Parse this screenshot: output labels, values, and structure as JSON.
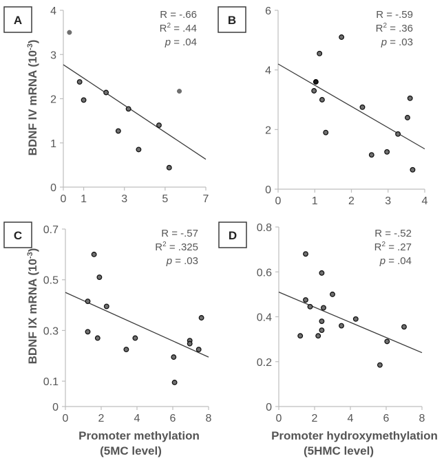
{
  "figure": {
    "y_label_top": "BDNF IV mRNA (10",
    "y_label_bottom": "BDNF IX mRNA (10",
    "y_label_exp": "-3",
    "y_label_close": ")",
    "x_label_left_line1": "Promoter methylation",
    "x_label_left_line2": "(5MC level)",
    "x_label_right_line1": "Promoter hydroxymethylation",
    "x_label_right_line2": "(5HMC level)"
  },
  "chart_data": [
    {
      "type": "scatter",
      "panel": "A",
      "xlim": [
        0,
        7
      ],
      "ylim": [
        0,
        4
      ],
      "xticks": [
        0,
        1,
        3,
        5,
        7
      ],
      "yticks": [
        0,
        1,
        2,
        3,
        4
      ],
      "stats": {
        "r": "R = -.66",
        "r2_base": "R",
        "r2_exp": "2",
        "r2_val": " = .44",
        "p_sym": "p",
        "p_val": " = .04"
      },
      "fit": {
        "x0": 0,
        "y0": 2.77,
        "x1": 7,
        "y1": 0.63
      },
      "points": [
        {
          "x": 0.3,
          "y": 3.5,
          "style": "plain"
        },
        {
          "x": 0.8,
          "y": 2.38
        },
        {
          "x": 1.0,
          "y": 1.97
        },
        {
          "x": 2.1,
          "y": 2.14
        },
        {
          "x": 3.2,
          "y": 1.77
        },
        {
          "x": 2.7,
          "y": 1.27
        },
        {
          "x": 3.7,
          "y": 0.85
        },
        {
          "x": 4.7,
          "y": 1.4
        },
        {
          "x": 5.2,
          "y": 0.44
        },
        {
          "x": 5.7,
          "y": 2.17,
          "style": "plain"
        }
      ]
    },
    {
      "type": "scatter",
      "panel": "B",
      "xlim": [
        0,
        4
      ],
      "ylim": [
        0,
        6
      ],
      "xticks": [
        0,
        1,
        2,
        3,
        4
      ],
      "yticks": [
        0,
        2,
        4,
        6
      ],
      "stats": {
        "r": "R = -.59",
        "r2_base": "R",
        "r2_exp": "2",
        "r2_val": " = .36",
        "p_sym": "p",
        "p_val": " = .03"
      },
      "fit": {
        "x0": 0,
        "y0": 4.2,
        "x1": 4,
        "y1": 1.35
      },
      "points": [
        {
          "x": 0.98,
          "y": 3.3
        },
        {
          "x": 1.03,
          "y": 3.6,
          "style": "dark"
        },
        {
          "x": 1.13,
          "y": 4.55
        },
        {
          "x": 1.2,
          "y": 3.0
        },
        {
          "x": 1.3,
          "y": 1.9
        },
        {
          "x": 1.73,
          "y": 5.1
        },
        {
          "x": 2.3,
          "y": 2.75
        },
        {
          "x": 2.55,
          "y": 1.15
        },
        {
          "x": 2.97,
          "y": 1.25
        },
        {
          "x": 3.27,
          "y": 1.85
        },
        {
          "x": 3.53,
          "y": 2.4
        },
        {
          "x": 3.6,
          "y": 3.05
        },
        {
          "x": 3.67,
          "y": 0.65
        }
      ]
    },
    {
      "type": "scatter",
      "panel": "C",
      "xlim": [
        0,
        8
      ],
      "ylim": [
        0,
        0.7
      ],
      "xticks": [
        0,
        2,
        4,
        6,
        8
      ],
      "yticks": [
        0,
        0.1,
        0.3,
        0.5,
        0.7
      ],
      "ytick_labels": [
        "0",
        "0.1",
        "0.3",
        "0.5",
        "0.7"
      ],
      "stats": {
        "r": "R = -.57",
        "r2_base": "R",
        "r2_exp": "2",
        "r2_val": " = .325",
        "p_sym": "p",
        "p_val": " = .03"
      },
      "fit": {
        "x0": 0,
        "y0": 0.45,
        "x1": 8,
        "y1": 0.195
      },
      "points": [
        {
          "x": 1.25,
          "y": 0.415
        },
        {
          "x": 1.25,
          "y": 0.295
        },
        {
          "x": 1.6,
          "y": 0.6
        },
        {
          "x": 1.9,
          "y": 0.51
        },
        {
          "x": 1.8,
          "y": 0.27
        },
        {
          "x": 2.3,
          "y": 0.395
        },
        {
          "x": 3.4,
          "y": 0.225
        },
        {
          "x": 3.9,
          "y": 0.27
        },
        {
          "x": 6.05,
          "y": 0.195
        },
        {
          "x": 6.1,
          "y": 0.095
        },
        {
          "x": 6.95,
          "y": 0.26
        },
        {
          "x": 6.95,
          "y": 0.248
        },
        {
          "x": 7.45,
          "y": 0.225
        },
        {
          "x": 7.6,
          "y": 0.35
        }
      ]
    },
    {
      "type": "scatter",
      "panel": "D",
      "xlim": [
        0,
        8
      ],
      "ylim": [
        0,
        0.8
      ],
      "xticks": [
        0,
        2,
        4,
        6,
        8
      ],
      "yticks": [
        0,
        0.2,
        0.4,
        0.6,
        0.8
      ],
      "ytick_labels": [
        "0",
        "0.2",
        "0.4",
        "0.6",
        "0.8"
      ],
      "stats": {
        "r": "R = -.52",
        "r2_base": "R",
        "r2_exp": "2",
        "r2_val": " = .27",
        "p_sym": "p",
        "p_val": " = .04"
      },
      "fit": {
        "x0": 0,
        "y0": 0.51,
        "x1": 8,
        "y1": 0.24
      },
      "points": [
        {
          "x": 1.2,
          "y": 0.315
        },
        {
          "x": 1.5,
          "y": 0.68
        },
        {
          "x": 1.5,
          "y": 0.475
        },
        {
          "x": 1.75,
          "y": 0.445
        },
        {
          "x": 2.2,
          "y": 0.315
        },
        {
          "x": 2.4,
          "y": 0.595
        },
        {
          "x": 2.4,
          "y": 0.38
        },
        {
          "x": 2.4,
          "y": 0.34
        },
        {
          "x": 2.5,
          "y": 0.44
        },
        {
          "x": 3.0,
          "y": 0.5
        },
        {
          "x": 3.5,
          "y": 0.36
        },
        {
          "x": 4.3,
          "y": 0.39
        },
        {
          "x": 5.65,
          "y": 0.185
        },
        {
          "x": 6.05,
          "y": 0.29
        },
        {
          "x": 7.0,
          "y": 0.355
        }
      ]
    }
  ]
}
